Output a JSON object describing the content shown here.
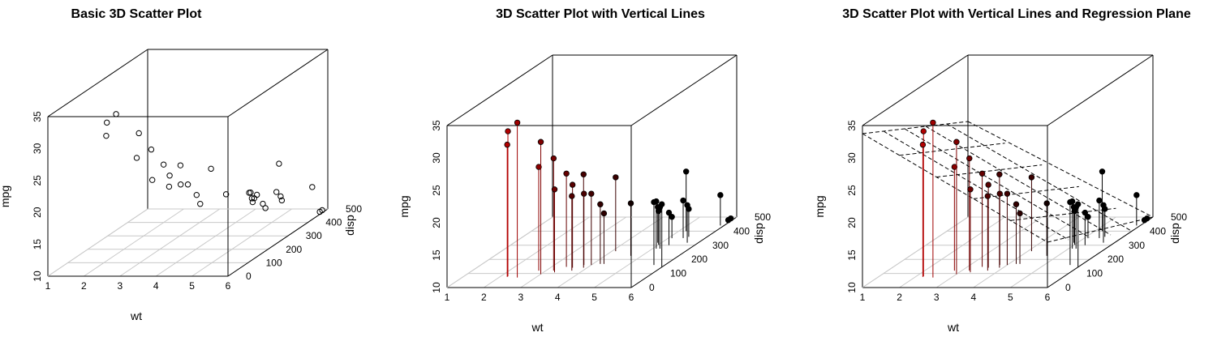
{
  "chart_data": [
    {
      "type": "scatter",
      "title": "Basic 3D Scatter Plot",
      "xlabel": "wt",
      "ylabel": "disp",
      "zlabel": "mpg",
      "x_ticks": [
        "1",
        "2",
        "3",
        "4",
        "5",
        "6"
      ],
      "y_ticks": [
        "0",
        "100",
        "200",
        "300",
        "400",
        "500"
      ],
      "z_ticks": [
        "10",
        "15",
        "20",
        "25",
        "30",
        "35"
      ],
      "xlim": [
        1,
        6
      ],
      "ylim": [
        0,
        500
      ],
      "zlim": [
        10,
        35
      ],
      "point_style": "open-circle",
      "vertical_lines": false,
      "regression_plane": false,
      "grid": true,
      "points": [
        {
          "wt": 2.2,
          "disp": 79,
          "mpg": 32.4
        },
        {
          "wt": 2.2,
          "disp": 75.7,
          "mpg": 30.4
        },
        {
          "wt": 2.5,
          "disp": 71.1,
          "mpg": 33.9
        },
        {
          "wt": 2.8,
          "disp": 120.3,
          "mpg": 26.0
        },
        {
          "wt": 3.0,
          "disp": 95.1,
          "mpg": 30.4
        },
        {
          "wt": 3.2,
          "disp": 121,
          "mpg": 27.3
        },
        {
          "wt": 3.3,
          "disp": 108,
          "mpg": 22.8
        },
        {
          "wt": 3.4,
          "disp": 146.7,
          "mpg": 24.4
        },
        {
          "wt": 3.6,
          "disp": 140.8,
          "mpg": 22.8
        },
        {
          "wt": 3.7,
          "disp": 120.1,
          "mpg": 21.5
        },
        {
          "wt": 3.8,
          "disp": 160,
          "mpg": 21.0
        },
        {
          "wt": 4.0,
          "disp": 160,
          "mpg": 21.0
        },
        {
          "wt": 4.1,
          "disp": 258,
          "mpg": 21.4
        },
        {
          "wt": 4.2,
          "disp": 167.6,
          "mpg": 19.2
        },
        {
          "wt": 4.3,
          "disp": 167.6,
          "mpg": 17.8
        },
        {
          "wt": 4.7,
          "disp": 225,
          "mpg": 18.1
        },
        {
          "wt": 4.9,
          "disp": 318,
          "mpg": 15.5
        },
        {
          "wt": 5.0,
          "disp": 304,
          "mpg": 15.2
        },
        {
          "wt": 5.1,
          "disp": 275.8,
          "mpg": 17.3
        },
        {
          "wt": 5.1,
          "disp": 350,
          "mpg": 13.3
        },
        {
          "wt": 5.2,
          "disp": 275.8,
          "mpg": 16.4
        },
        {
          "wt": 5.2,
          "disp": 400,
          "mpg": 19.2
        },
        {
          "wt": 5.3,
          "disp": 301,
          "mpg": 15.0
        },
        {
          "wt": 5.4,
          "disp": 351,
          "mpg": 15.8
        },
        {
          "wt": 5.5,
          "disp": 360,
          "mpg": 14.3
        },
        {
          "wt": 5.7,
          "disp": 318,
          "mpg": 15.8
        },
        {
          "wt": 5.7,
          "disp": 160,
          "mpg": 19.7
        },
        {
          "wt": 6.0,
          "disp": 145,
          "mpg": 19.7
        },
        {
          "wt": 6.0,
          "disp": 460,
          "mpg": 10.4
        },
        {
          "wt": 6.0,
          "disp": 472,
          "mpg": 10.4
        },
        {
          "wt": 5.9,
          "disp": 440,
          "mpg": 14.7
        },
        {
          "wt": 3.9,
          "disp": 140.8,
          "mpg": 24.4
        }
      ]
    },
    {
      "type": "scatter",
      "title": "3D Scatter Plot with Vertical Lines",
      "xlabel": "wt",
      "ylabel": "disp",
      "zlabel": "mpg",
      "x_ticks": [
        "1",
        "2",
        "3",
        "4",
        "5",
        "6"
      ],
      "y_ticks": [
        "0",
        "100",
        "200",
        "300",
        "400",
        "500"
      ],
      "z_ticks": [
        "10",
        "15",
        "20",
        "25",
        "30",
        "35"
      ],
      "xlim": [
        1,
        6
      ],
      "ylim": [
        0,
        500
      ],
      "zlim": [
        10,
        35
      ],
      "point_style": "filled-circle",
      "color_gradient": [
        "#ff0000",
        "#000000"
      ],
      "vertical_lines": true,
      "regression_plane": false,
      "grid": true
    },
    {
      "type": "scatter",
      "title": "3D Scatter Plot with Vertical Lines and Regression Plane",
      "xlabel": "wt",
      "ylabel": "disp",
      "zlabel": "mpg",
      "x_ticks": [
        "1",
        "2",
        "3",
        "4",
        "5",
        "6"
      ],
      "y_ticks": [
        "0",
        "100",
        "200",
        "300",
        "400",
        "500"
      ],
      "z_ticks": [
        "10",
        "15",
        "20",
        "25",
        "30",
        "35"
      ],
      "xlim": [
        1,
        6
      ],
      "ylim": [
        0,
        500
      ],
      "zlim": [
        10,
        35
      ],
      "point_style": "filled-circle",
      "color_gradient": [
        "#ff0000",
        "#000000"
      ],
      "vertical_lines": true,
      "regression_plane": true,
      "plane_style": "dashed",
      "grid": true
    }
  ]
}
